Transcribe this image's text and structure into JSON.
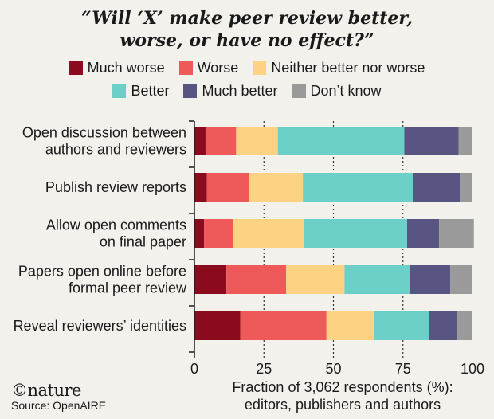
{
  "chart_data": {
    "type": "bar",
    "orientation": "horizontal",
    "stacked": true,
    "title_lines": [
      "“Will ‘X’ make peer review better,",
      "worse, or have no effect?”"
    ],
    "categories": [
      [
        "Open discussion between",
        "authors and reviewers"
      ],
      [
        "Publish review reports"
      ],
      [
        "Allow open comments",
        "on final paper"
      ],
      [
        "Papers open online before",
        "formal peer review"
      ],
      [
        "Reveal reviewers’ identities"
      ]
    ],
    "series": [
      {
        "name": "Much worse",
        "color": "#8c0a1e",
        "values": [
          4,
          4.5,
          3.5,
          11.5,
          16.5
        ]
      },
      {
        "name": "Worse",
        "color": "#ee5a5a",
        "values": [
          11,
          15,
          10.5,
          21.5,
          31
        ]
      },
      {
        "name": "Neither better nor worse",
        "color": "#fdd283",
        "values": [
          15,
          19.5,
          25.5,
          21,
          17
        ]
      },
      {
        "name": "Better",
        "color": "#6ccfc8",
        "values": [
          45.5,
          39.5,
          37,
          23.5,
          20
        ]
      },
      {
        "name": "Much better",
        "color": "#585582",
        "values": [
          19.5,
          17,
          11.5,
          14.5,
          10
        ]
      },
      {
        "name": "Don’t know",
        "color": "#9a9a9a",
        "values": [
          5,
          4.5,
          12.5,
          8,
          5.5
        ]
      }
    ],
    "xlim": [
      0,
      100
    ],
    "xticks": [
      "0",
      "25",
      "50",
      "75",
      "100"
    ],
    "xlabel_lines": [
      "Fraction of 3,062 respondents (%):",
      "editors, publishers and authors"
    ],
    "grid": "dotted vertical",
    "legend_position": "top"
  },
  "footer": {
    "logo": "©nature",
    "source": "Source: OpenAIRE"
  }
}
